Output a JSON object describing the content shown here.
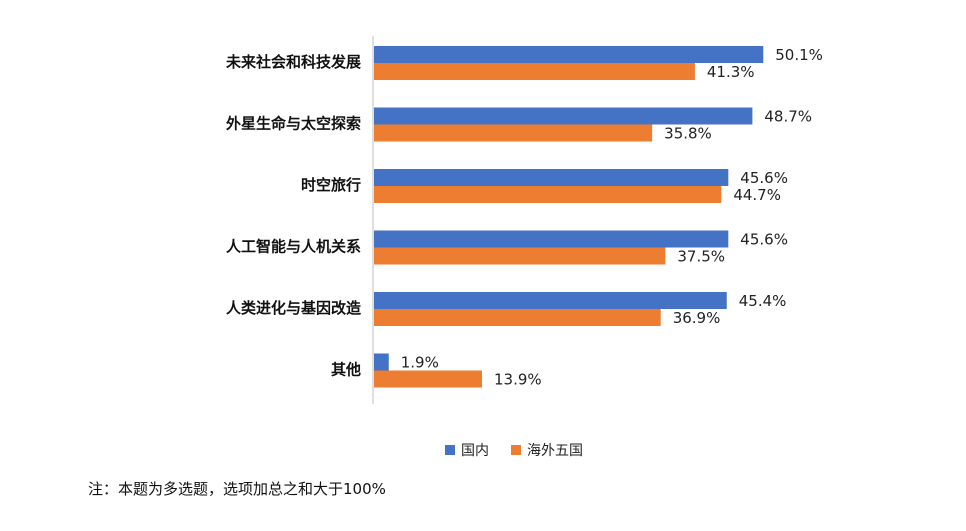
{
  "chart_data": {
    "type": "bar",
    "orientation": "horizontal",
    "categories": [
      "未来社会和科技发展",
      "外星生命与太空探索",
      "时空旅行",
      "人工智能与人机关系",
      "人类进化与基因改造",
      "其他"
    ],
    "series": [
      {
        "name": "国内",
        "color": "#4472C4",
        "values": [
          50.1,
          48.7,
          45.6,
          45.6,
          45.4,
          1.9
        ],
        "labels": [
          "50.1%",
          "48.7%",
          "45.6%",
          "45.6%",
          "45.4%",
          "1.9%"
        ]
      },
      {
        "name": "海外五国",
        "color": "#ED7D31",
        "values": [
          41.3,
          35.8,
          44.7,
          37.5,
          36.9,
          13.9
        ],
        "labels": [
          "41.3%",
          "35.8%",
          "44.7%",
          "37.5%",
          "36.9%",
          "13.9%"
        ]
      }
    ],
    "xlim": [
      0,
      60
    ],
    "grid": false,
    "legend_position": "bottom"
  },
  "note": "注：本题为多选题，选项加总之和大于100%"
}
